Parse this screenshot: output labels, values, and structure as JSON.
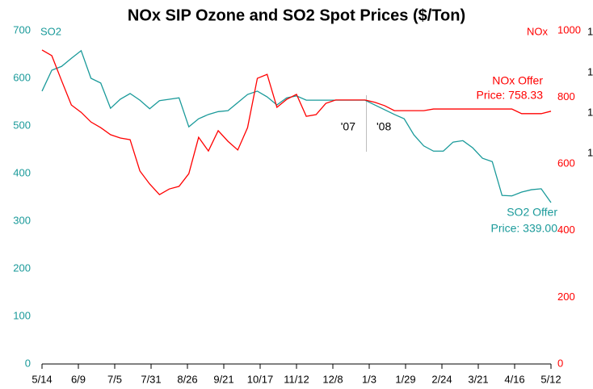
{
  "chart_data": {
    "type": "line",
    "title": "NOx SIP Ozone and SO2 Spot Prices ($/Ton)",
    "y_label": "SO2",
    "y2_label": "NOx",
    "x": [
      0,
      7,
      14,
      21,
      28,
      35,
      42,
      49,
      56,
      63,
      70,
      77,
      84,
      91,
      98,
      105,
      112,
      119,
      126,
      133,
      140,
      147,
      154,
      161,
      168,
      175,
      182,
      189,
      196,
      203,
      210,
      217,
      224,
      231,
      238,
      245,
      252,
      259,
      266,
      273,
      280,
      287,
      294,
      301,
      308,
      315,
      322,
      329,
      336,
      343,
      350,
      357,
      364
    ],
    "xlim": [
      0,
      364
    ],
    "xticks": [
      {
        "value": 0,
        "label": "5/14"
      },
      {
        "value": 26,
        "label": "6/9"
      },
      {
        "value": 52,
        "label": "7/5"
      },
      {
        "value": 78,
        "label": "7/31"
      },
      {
        "value": 104,
        "label": "8/26"
      },
      {
        "value": 130,
        "label": "9/21"
      },
      {
        "value": 156,
        "label": "10/17"
      },
      {
        "value": 182,
        "label": "11/12"
      },
      {
        "value": 208,
        "label": "12/8"
      },
      {
        "value": 234,
        "label": "1/3"
      },
      {
        "value": 260,
        "label": "1/29"
      },
      {
        "value": 286,
        "label": "2/24"
      },
      {
        "value": 312,
        "label": "3/21"
      },
      {
        "value": 338,
        "label": "4/16"
      },
      {
        "value": 364,
        "label": "5/12"
      }
    ],
    "ylim": [
      0,
      700
    ],
    "yticks": [
      0,
      100,
      200,
      300,
      400,
      500,
      600,
      700
    ],
    "y2lim": [
      0,
      1000
    ],
    "y2ticks": [
      0,
      200,
      400,
      600,
      800,
      1000
    ],
    "series": [
      {
        "name": "SO2",
        "color": "#1a9a9a",
        "values": [
          573,
          617,
          625,
          642,
          658,
          600,
          590,
          537,
          556,
          568,
          554,
          536,
          553,
          556,
          559,
          498,
          515,
          524,
          530,
          532,
          549,
          566,
          573,
          561,
          544,
          559,
          563,
          554,
          554,
          554,
          554,
          554,
          554,
          554,
          544,
          534,
          524,
          515,
          481,
          458,
          447,
          447,
          466,
          469,
          454,
          432,
          425,
          354,
          353,
          361,
          366,
          368,
          339
        ]
      },
      {
        "name": "NOx",
        "color": "#ff0000",
        "axis": "y2",
        "values": [
          942,
          925,
          850,
          777,
          755,
          726,
          709,
          688,
          678,
          673,
          579,
          540,
          508,
          525,
          533,
          571,
          680,
          639,
          700,
          668,
          642,
          709,
          857,
          869,
          770,
          794,
          809,
          743,
          748,
          782,
          792,
          792,
          792,
          792,
          785,
          775,
          760,
          760,
          760,
          760,
          765,
          765,
          765,
          765,
          765,
          765,
          765,
          765,
          765,
          751,
          751,
          751,
          758.33
        ]
      }
    ],
    "annotations": [
      {
        "text": "'07",
        "color": "#000000"
      },
      {
        "text": "'08",
        "color": "#000000"
      },
      {
        "text": "NOx Offer",
        "color": "#ff0000"
      },
      {
        "text": "Price: 758.33",
        "color": "#ff0000"
      },
      {
        "text": "SO2 Offer",
        "color": "#1a9a9a"
      },
      {
        "text": "Price: 339.00",
        "color": "#1a9a9a"
      }
    ],
    "year_divider_x": 232,
    "clipped_labels": [
      "1",
      "1",
      "1",
      "1"
    ]
  }
}
